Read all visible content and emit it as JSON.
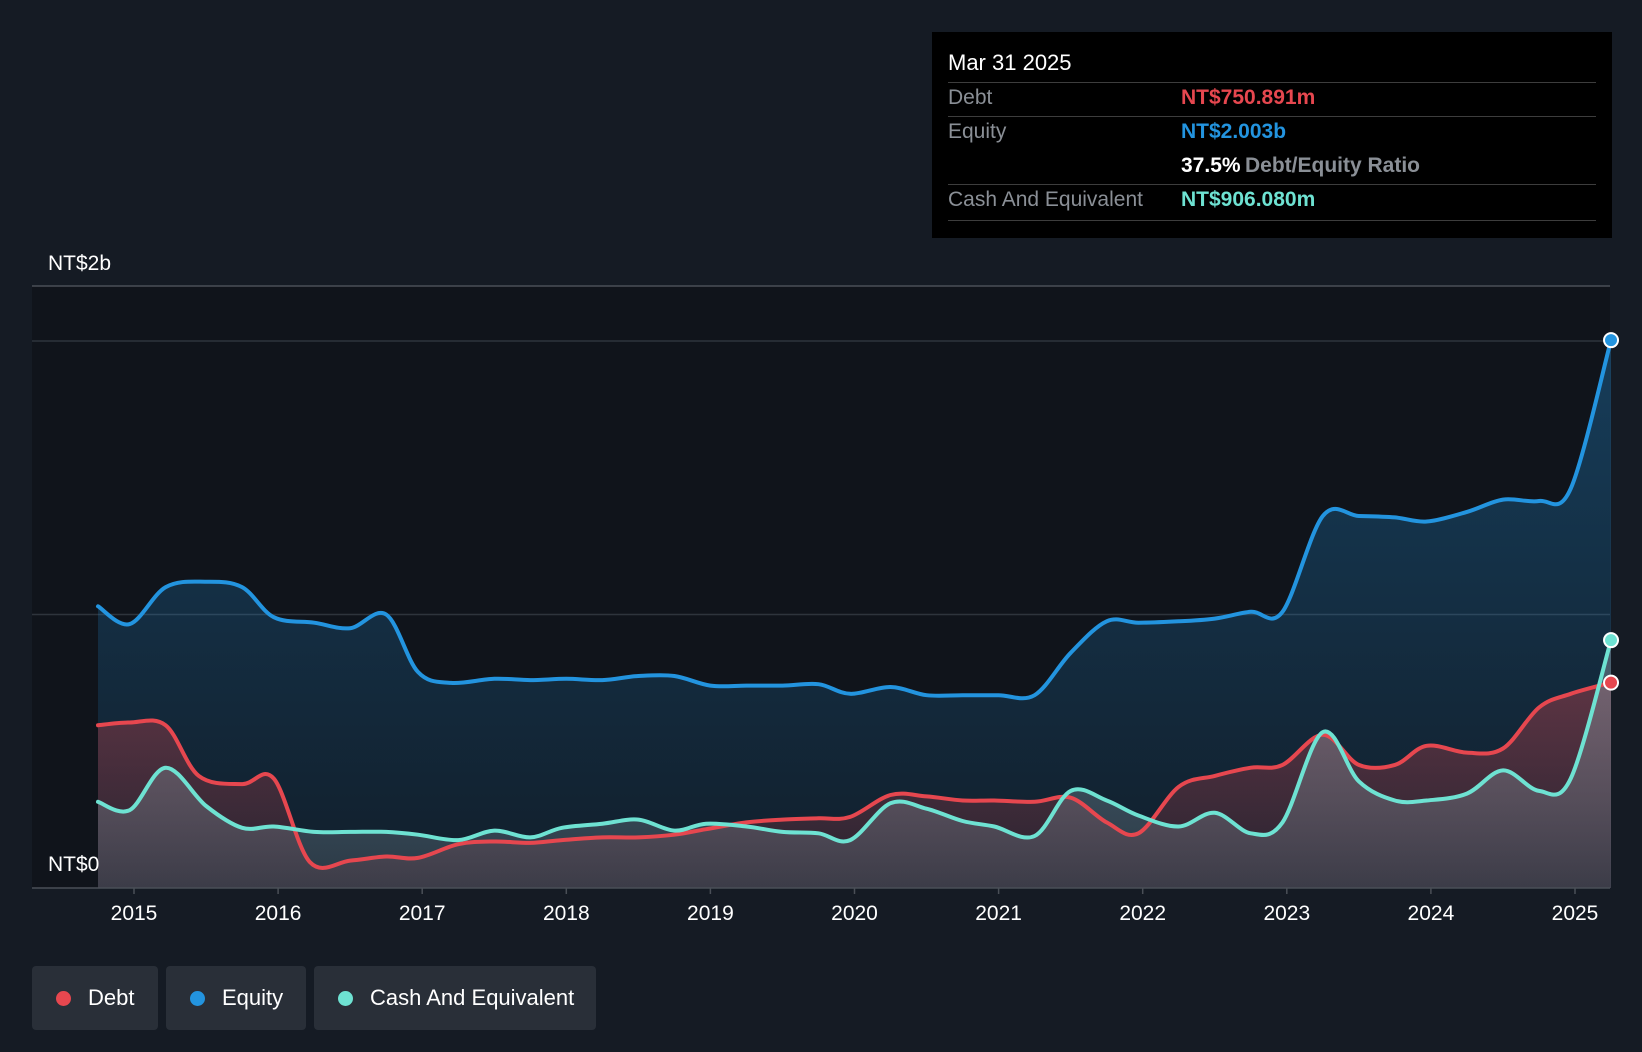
{
  "tooltip": {
    "date": "Mar 31 2025",
    "debt_label": "Debt",
    "debt_value": "NT$750.891m",
    "equity_label": "Equity",
    "equity_value": "NT$2.003b",
    "ratio_value": "37.5%",
    "ratio_label": "Debt/Equity Ratio",
    "cash_label": "Cash And Equivalent",
    "cash_value": "NT$906.080m"
  },
  "legend": [
    {
      "label": "Debt",
      "color": "#e6474f"
    },
    {
      "label": "Equity",
      "color": "#2394df"
    },
    {
      "label": "Cash And Equivalent",
      "color": "#6ee2d2"
    }
  ],
  "chart_data": {
    "type": "area",
    "ylabel_top": "NT$2b",
    "ylabel_bottom": "NT$0",
    "ylim": [
      0,
      2200
    ],
    "xlim": [
      2014.7,
      2025.25
    ],
    "x_ticks": [
      2015,
      2016,
      2017,
      2018,
      2019,
      2020,
      2021,
      2022,
      2023,
      2024,
      2025
    ],
    "x_tick_labels": [
      "2015",
      "2016",
      "2017",
      "2018",
      "2019",
      "2020",
      "2021",
      "2022",
      "2023",
      "2024",
      "2025"
    ],
    "gridlines": [
      1000,
      2000
    ],
    "series": [
      {
        "name": "Equity",
        "color": "#2394df",
        "points": [
          [
            2014.75,
            1030
          ],
          [
            2014.97,
            965
          ],
          [
            2015.22,
            1100
          ],
          [
            2015.5,
            1120
          ],
          [
            2015.75,
            1100
          ],
          [
            2015.97,
            990
          ],
          [
            2016.25,
            970
          ],
          [
            2016.5,
            950
          ],
          [
            2016.75,
            1000
          ],
          [
            2016.97,
            790
          ],
          [
            2017.2,
            750
          ],
          [
            2017.5,
            765
          ],
          [
            2017.75,
            760
          ],
          [
            2018.0,
            765
          ],
          [
            2018.25,
            760
          ],
          [
            2018.5,
            775
          ],
          [
            2018.75,
            775
          ],
          [
            2019.0,
            740
          ],
          [
            2019.25,
            740
          ],
          [
            2019.5,
            740
          ],
          [
            2019.75,
            745
          ],
          [
            2019.97,
            710
          ],
          [
            2020.25,
            735
          ],
          [
            2020.5,
            705
          ],
          [
            2020.75,
            705
          ],
          [
            2021.0,
            705
          ],
          [
            2021.25,
            705
          ],
          [
            2021.5,
            860
          ],
          [
            2021.75,
            975
          ],
          [
            2021.97,
            970
          ],
          [
            2022.25,
            975
          ],
          [
            2022.5,
            985
          ],
          [
            2022.75,
            1010
          ],
          [
            2022.97,
            1010
          ],
          [
            2023.25,
            1360
          ],
          [
            2023.5,
            1360
          ],
          [
            2023.75,
            1355
          ],
          [
            2023.97,
            1340
          ],
          [
            2024.25,
            1375
          ],
          [
            2024.5,
            1420
          ],
          [
            2024.75,
            1415
          ],
          [
            2024.97,
            1460
          ],
          [
            2025.25,
            2003
          ]
        ]
      },
      {
        "name": "Debt",
        "color": "#e6474f",
        "points": [
          [
            2014.75,
            595
          ],
          [
            2014.97,
            605
          ],
          [
            2015.22,
            595
          ],
          [
            2015.45,
            410
          ],
          [
            2015.75,
            380
          ],
          [
            2015.97,
            400
          ],
          [
            2016.22,
            95
          ],
          [
            2016.5,
            100
          ],
          [
            2016.75,
            115
          ],
          [
            2016.97,
            110
          ],
          [
            2017.25,
            160
          ],
          [
            2017.5,
            170
          ],
          [
            2017.75,
            165
          ],
          [
            2017.97,
            175
          ],
          [
            2018.25,
            185
          ],
          [
            2018.5,
            185
          ],
          [
            2018.75,
            195
          ],
          [
            2018.97,
            215
          ],
          [
            2019.25,
            240
          ],
          [
            2019.5,
            250
          ],
          [
            2019.75,
            255
          ],
          [
            2019.97,
            260
          ],
          [
            2020.25,
            340
          ],
          [
            2020.5,
            335
          ],
          [
            2020.75,
            320
          ],
          [
            2020.97,
            320
          ],
          [
            2021.25,
            315
          ],
          [
            2021.5,
            330
          ],
          [
            2021.75,
            240
          ],
          [
            2021.97,
            200
          ],
          [
            2022.25,
            370
          ],
          [
            2022.5,
            410
          ],
          [
            2022.75,
            440
          ],
          [
            2022.97,
            450
          ],
          [
            2023.25,
            560
          ],
          [
            2023.5,
            450
          ],
          [
            2023.75,
            450
          ],
          [
            2023.97,
            520
          ],
          [
            2024.25,
            495
          ],
          [
            2024.5,
            510
          ],
          [
            2024.75,
            660
          ],
          [
            2024.97,
            710
          ],
          [
            2025.25,
            750.891
          ]
        ]
      },
      {
        "name": "Cash And Equivalent",
        "color": "#6ee2d2",
        "points": [
          [
            2014.75,
            315
          ],
          [
            2014.97,
            285
          ],
          [
            2015.22,
            440
          ],
          [
            2015.5,
            300
          ],
          [
            2015.75,
            220
          ],
          [
            2015.97,
            225
          ],
          [
            2016.25,
            205
          ],
          [
            2016.5,
            205
          ],
          [
            2016.75,
            205
          ],
          [
            2016.97,
            195
          ],
          [
            2017.25,
            175
          ],
          [
            2017.5,
            210
          ],
          [
            2017.75,
            185
          ],
          [
            2017.97,
            220
          ],
          [
            2018.25,
            235
          ],
          [
            2018.5,
            250
          ],
          [
            2018.75,
            210
          ],
          [
            2018.97,
            235
          ],
          [
            2019.25,
            225
          ],
          [
            2019.5,
            205
          ],
          [
            2019.75,
            200
          ],
          [
            2019.97,
            175
          ],
          [
            2020.25,
            310
          ],
          [
            2020.5,
            290
          ],
          [
            2020.75,
            245
          ],
          [
            2020.97,
            225
          ],
          [
            2021.25,
            190
          ],
          [
            2021.5,
            355
          ],
          [
            2021.75,
            320
          ],
          [
            2021.97,
            265
          ],
          [
            2022.25,
            225
          ],
          [
            2022.5,
            275
          ],
          [
            2022.75,
            200
          ],
          [
            2022.97,
            240
          ],
          [
            2023.25,
            570
          ],
          [
            2023.5,
            390
          ],
          [
            2023.75,
            320
          ],
          [
            2023.97,
            320
          ],
          [
            2024.25,
            345
          ],
          [
            2024.5,
            430
          ],
          [
            2024.75,
            355
          ],
          [
            2024.97,
            400
          ],
          [
            2025.25,
            906.08
          ]
        ]
      }
    ]
  }
}
